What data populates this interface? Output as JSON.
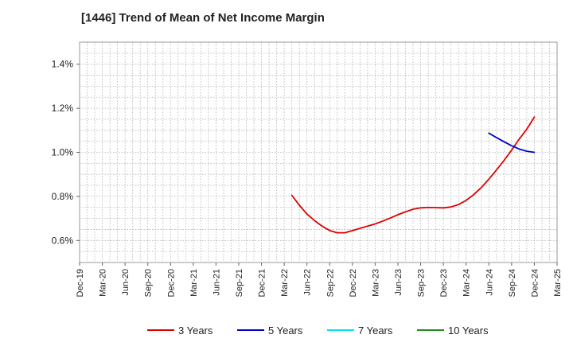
{
  "chart_data": {
    "type": "line",
    "title": "[1446]  Trend of Mean of Net Income Margin",
    "xlabel": "",
    "ylabel": "",
    "ylim": [
      0.5,
      1.5
    ],
    "yticks": [
      0.6,
      0.8,
      1.0,
      1.2,
      1.4
    ],
    "ytick_labels": [
      "0.6%",
      "0.8%",
      "1.0%",
      "1.2%",
      "1.4%"
    ],
    "categories": [
      "Dec-19",
      "Mar-20",
      "Jun-20",
      "Sep-20",
      "Dec-20",
      "Mar-21",
      "Jun-21",
      "Sep-21",
      "Dec-21",
      "Mar-22",
      "Jun-22",
      "Sep-22",
      "Dec-22",
      "Mar-23",
      "Jun-23",
      "Sep-23",
      "Dec-23",
      "Mar-24",
      "Jun-24",
      "Sep-24",
      "Dec-24",
      "Mar-25"
    ],
    "grid": true,
    "legend_position": "bottom",
    "series": [
      {
        "name": "3 Years",
        "color": "#dd0000",
        "x": [
          "Apr-22",
          "May-22",
          "Jun-22",
          "Jul-22",
          "Aug-22",
          "Sep-22",
          "Oct-22",
          "Nov-22",
          "Dec-22",
          "Jan-23",
          "Feb-23",
          "Mar-23",
          "Apr-23",
          "May-23",
          "Jun-23",
          "Jul-23",
          "Aug-23",
          "Sep-23",
          "Oct-23",
          "Nov-23",
          "Dec-23",
          "Jan-24",
          "Feb-24",
          "Mar-24",
          "Apr-24",
          "May-24",
          "Jun-24",
          "Jul-24",
          "Aug-24",
          "Sep-24",
          "Oct-24",
          "Nov-24",
          "Dec-24"
        ],
        "values": [
          0.805,
          0.76,
          0.72,
          0.69,
          0.665,
          0.645,
          0.635,
          0.635,
          0.645,
          0.655,
          0.665,
          0.675,
          0.688,
          0.702,
          0.717,
          0.73,
          0.742,
          0.748,
          0.75,
          0.749,
          0.748,
          0.752,
          0.763,
          0.782,
          0.808,
          0.84,
          0.878,
          0.92,
          0.963,
          1.01,
          1.06,
          1.105,
          1.16
        ]
      },
      {
        "name": "5 Years",
        "color": "#0000cc",
        "x": [
          "Jun-24",
          "Jul-24",
          "Aug-24",
          "Sep-24",
          "Oct-24",
          "Nov-24",
          "Dec-24"
        ],
        "values": [
          1.087,
          1.067,
          1.048,
          1.03,
          1.015,
          1.005,
          1.0
        ]
      },
      {
        "name": "7 Years",
        "color": "#00e5ee",
        "x": [],
        "values": []
      },
      {
        "name": "10 Years",
        "color": "#228b22",
        "x": [],
        "values": []
      }
    ]
  }
}
